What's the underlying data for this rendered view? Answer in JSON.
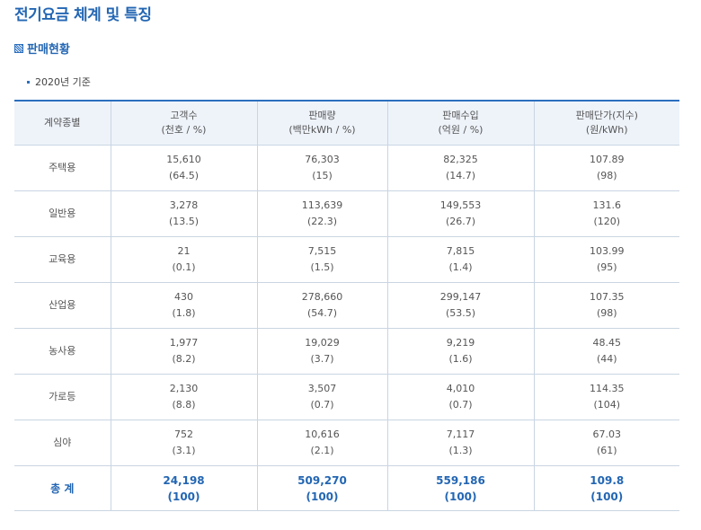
{
  "page_title": "전기요금 체계 및 특징",
  "section_title": "판매현황",
  "basis_note": "2020년 기준",
  "table": {
    "headers": [
      {
        "line1": "계약종별",
        "line2": ""
      },
      {
        "line1": "고객수",
        "line2": "(천호 / %)"
      },
      {
        "line1": "판매량",
        "line2": "(백만kWh / %)"
      },
      {
        "line1": "판매수입",
        "line2": "(억원 / %)"
      },
      {
        "line1": "판매단가(지수)",
        "line2": "(원/kWh)"
      }
    ],
    "rows": [
      {
        "type": "주택용",
        "cells": [
          [
            "15,610",
            "(64.5)"
          ],
          [
            "76,303",
            "(15)"
          ],
          [
            "82,325",
            "(14.7)"
          ],
          [
            "107.89",
            "(98)"
          ]
        ]
      },
      {
        "type": "일반용",
        "cells": [
          [
            "3,278",
            "(13.5)"
          ],
          [
            "113,639",
            "(22.3)"
          ],
          [
            "149,553",
            "(26.7)"
          ],
          [
            "131.6",
            "(120)"
          ]
        ]
      },
      {
        "type": "교육용",
        "cells": [
          [
            "21",
            "(0.1)"
          ],
          [
            "7,515",
            "(1.5)"
          ],
          [
            "7,815",
            "(1.4)"
          ],
          [
            "103.99",
            "(95)"
          ]
        ]
      },
      {
        "type": "산업용",
        "cells": [
          [
            "430",
            "(1.8)"
          ],
          [
            "278,660",
            "(54.7)"
          ],
          [
            "299,147",
            "(53.5)"
          ],
          [
            "107.35",
            "(98)"
          ]
        ]
      },
      {
        "type": "농사용",
        "cells": [
          [
            "1,977",
            "(8.2)"
          ],
          [
            "19,029",
            "(3.7)"
          ],
          [
            "9,219",
            "(1.6)"
          ],
          [
            "48.45",
            "(44)"
          ]
        ]
      },
      {
        "type": "가로등",
        "cells": [
          [
            "2,130",
            "(8.8)"
          ],
          [
            "3,507",
            "(0.7)"
          ],
          [
            "4,010",
            "(0.7)"
          ],
          [
            "114.35",
            "(104)"
          ]
        ]
      },
      {
        "type": "심야",
        "cells": [
          [
            "752",
            "(3.1)"
          ],
          [
            "10,616",
            "(2.1)"
          ],
          [
            "7,117",
            "(1.3)"
          ],
          [
            "67.03",
            "(61)"
          ]
        ]
      }
    ],
    "total": {
      "type": "총 계",
      "cells": [
        [
          "24,198",
          "(100)"
        ],
        [
          "509,270",
          "(100)"
        ],
        [
          "559,186",
          "(100)"
        ],
        [
          "109.8",
          "(100)"
        ]
      ]
    }
  },
  "colors": {
    "accent": "#2366b3",
    "header_bg": "#eef3fa",
    "border": "#c9d5e2"
  }
}
